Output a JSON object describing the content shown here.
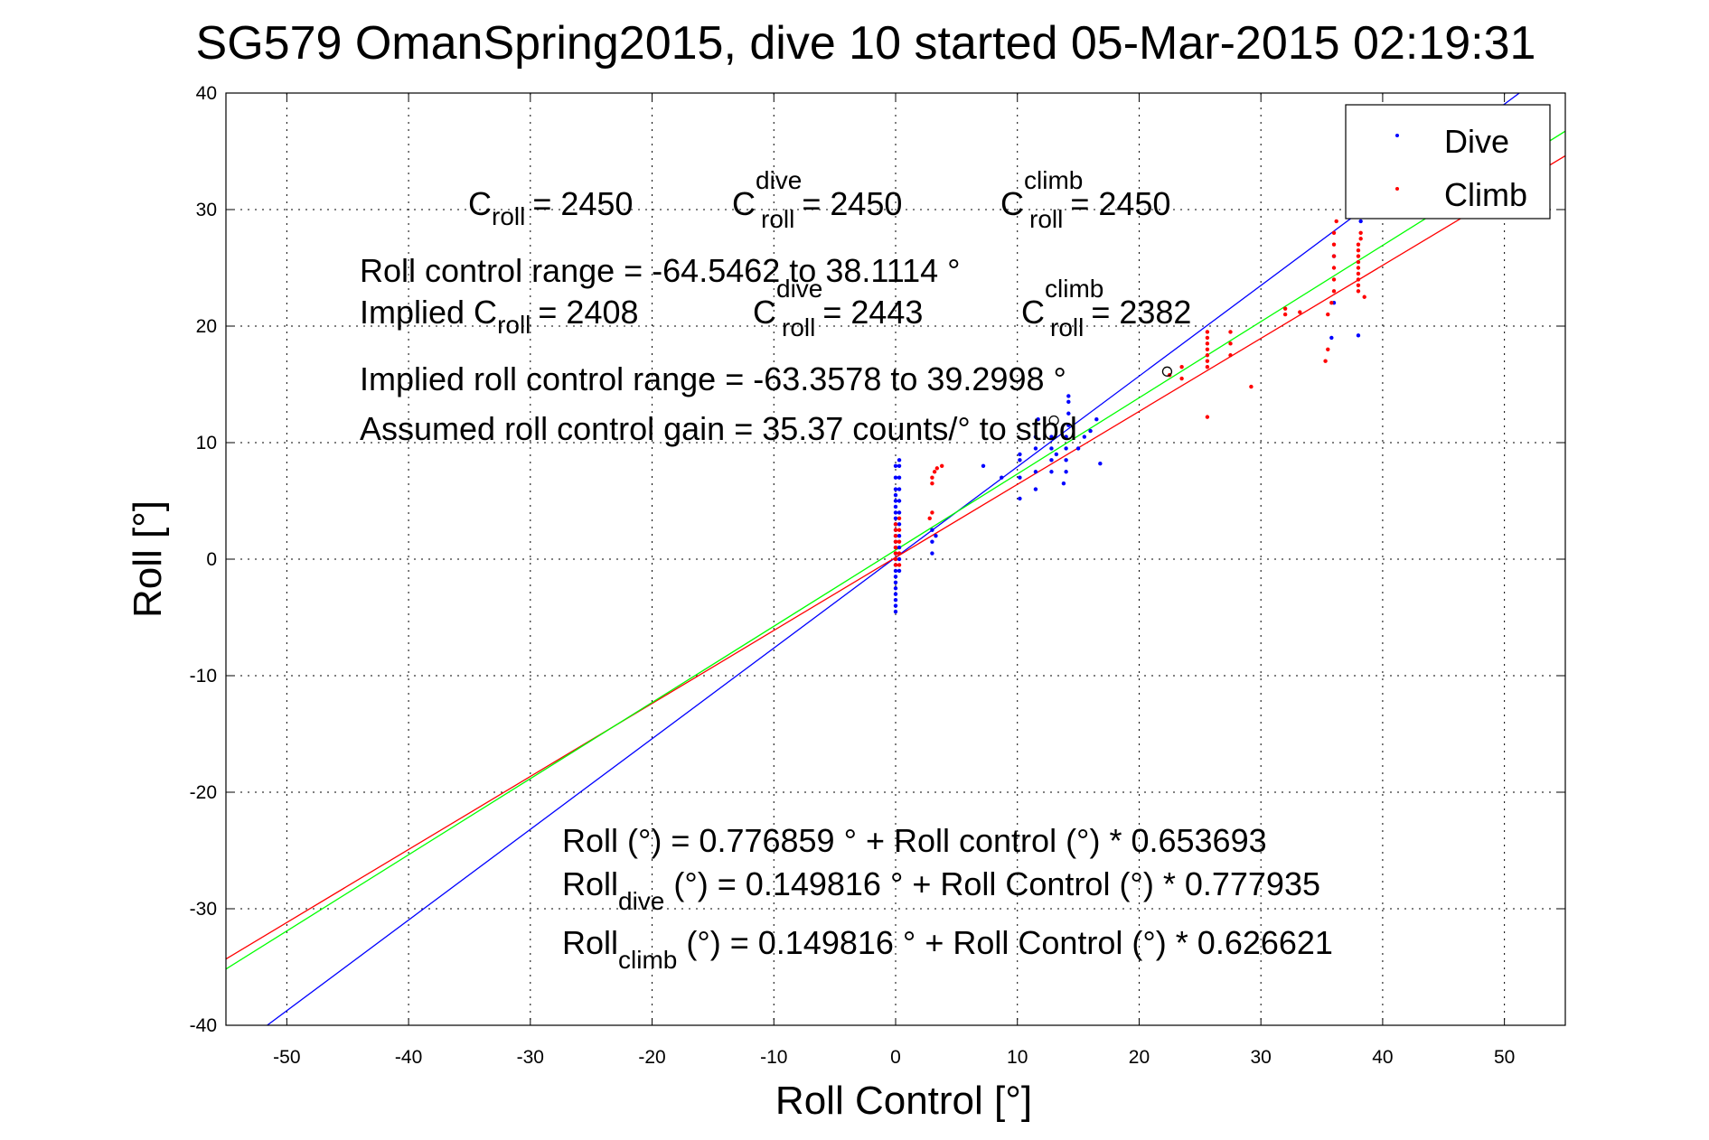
{
  "chart_data": {
    "type": "scatter",
    "title": "SG579 OmanSpring2015, dive 10 started 05-Mar-2015 02:19:31",
    "xlabel": "Roll Control [°]",
    "ylabel": "Roll [°]",
    "xlim": [
      -55,
      55
    ],
    "ylim": [
      -40,
      40
    ],
    "xticks": [
      -50,
      -40,
      -30,
      -20,
      -10,
      0,
      10,
      20,
      30,
      40,
      50
    ],
    "yticks": [
      -40,
      -30,
      -20,
      -10,
      0,
      10,
      20,
      30,
      40
    ],
    "grid": true,
    "legend_position": "top-right",
    "legend": [
      {
        "name": "Dive",
        "color": "#0000ff"
      },
      {
        "name": "Climb",
        "color": "#ff0000"
      }
    ],
    "series": [
      {
        "name": "Dive",
        "color": "#0000ff",
        "points": [
          [
            0,
            -4.5
          ],
          [
            0,
            -4
          ],
          [
            0,
            -3.5
          ],
          [
            0,
            -3
          ],
          [
            0,
            -2.5
          ],
          [
            0,
            -2
          ],
          [
            0,
            -1.5
          ],
          [
            0,
            -1
          ],
          [
            0,
            -0.5
          ],
          [
            0,
            0
          ],
          [
            0,
            0.5
          ],
          [
            0,
            1
          ],
          [
            0,
            1.5
          ],
          [
            0,
            2
          ],
          [
            0,
            2.5
          ],
          [
            0,
            3
          ],
          [
            0,
            3.5
          ],
          [
            0,
            4
          ],
          [
            0,
            4.5
          ],
          [
            0,
            5
          ],
          [
            0,
            5.5
          ],
          [
            0,
            6
          ],
          [
            0,
            7
          ],
          [
            0,
            8
          ],
          [
            0.3,
            -1
          ],
          [
            0.3,
            0
          ],
          [
            0.3,
            1
          ],
          [
            0.3,
            2
          ],
          [
            0.3,
            3
          ],
          [
            0.3,
            4
          ],
          [
            0.3,
            5
          ],
          [
            0.3,
            6
          ],
          [
            0.3,
            7
          ],
          [
            0.3,
            8
          ],
          [
            0.3,
            8.5
          ],
          [
            3,
            0.5
          ],
          [
            3,
            1.5
          ],
          [
            3,
            2.5
          ],
          [
            3.3,
            2
          ],
          [
            7.2,
            8
          ],
          [
            8.7,
            7
          ],
          [
            10.2,
            5.2
          ],
          [
            10.2,
            7
          ],
          [
            10.2,
            8.5
          ],
          [
            10.2,
            9
          ],
          [
            11.5,
            6
          ],
          [
            11.5,
            7.5
          ],
          [
            11.5,
            9.5
          ],
          [
            11.5,
            10.5
          ],
          [
            11.7,
            12
          ],
          [
            12.8,
            7.5
          ],
          [
            12.8,
            8.5
          ],
          [
            12.8,
            9.5
          ],
          [
            12.8,
            10.5
          ],
          [
            13.2,
            9
          ],
          [
            13.8,
            6.5
          ],
          [
            14,
            7.5
          ],
          [
            14,
            8.5
          ],
          [
            14,
            9.5
          ],
          [
            14,
            10.5
          ],
          [
            14.2,
            11.5
          ],
          [
            14.2,
            12.5
          ],
          [
            14.2,
            13.5
          ],
          [
            14.2,
            14
          ],
          [
            15,
            9.5
          ],
          [
            15.5,
            10.5
          ],
          [
            16,
            11
          ],
          [
            16.5,
            12
          ],
          [
            16.8,
            8.2
          ],
          [
            35.8,
            19
          ],
          [
            36,
            22
          ],
          [
            36,
            26
          ],
          [
            38,
            19.2
          ],
          [
            38.2,
            29
          ]
        ]
      },
      {
        "name": "Climb",
        "color": "#ff0000",
        "points": [
          [
            0,
            -0.5
          ],
          [
            0,
            0
          ],
          [
            0,
            0.5
          ],
          [
            0,
            1
          ],
          [
            0,
            1.5
          ],
          [
            0,
            2
          ],
          [
            0,
            2.5
          ],
          [
            0,
            3
          ],
          [
            0.3,
            -0.5
          ],
          [
            0.3,
            0.5
          ],
          [
            0.3,
            1.5
          ],
          [
            0.3,
            2.5
          ],
          [
            0.3,
            3.5
          ],
          [
            2.8,
            3.5
          ],
          [
            3,
            4
          ],
          [
            3,
            6.5
          ],
          [
            3,
            7
          ],
          [
            3.2,
            7.5
          ],
          [
            3.4,
            7.8
          ],
          [
            3.8,
            8
          ],
          [
            22.5,
            15.8
          ],
          [
            23.5,
            15.5
          ],
          [
            23.5,
            16.5
          ],
          [
            25.6,
            16.5
          ],
          [
            25.6,
            17
          ],
          [
            25.6,
            17.5
          ],
          [
            25.6,
            18
          ],
          [
            25.6,
            18.5
          ],
          [
            25.6,
            19
          ],
          [
            25.6,
            19.5
          ],
          [
            25.6,
            12.2
          ],
          [
            27.5,
            17.5
          ],
          [
            27.5,
            18.5
          ],
          [
            27.5,
            19.5
          ],
          [
            29.2,
            14.8
          ],
          [
            32,
            21
          ],
          [
            32,
            21.5
          ],
          [
            33.2,
            21.2
          ],
          [
            35.3,
            17
          ],
          [
            35.5,
            18
          ],
          [
            35.5,
            21
          ],
          [
            35.8,
            22
          ],
          [
            36,
            23
          ],
          [
            36,
            24
          ],
          [
            36,
            25
          ],
          [
            36,
            26
          ],
          [
            36,
            27
          ],
          [
            36,
            28
          ],
          [
            36.2,
            29
          ],
          [
            38,
            23
          ],
          [
            38,
            23.5
          ],
          [
            38,
            24
          ],
          [
            38,
            24.5
          ],
          [
            38,
            25
          ],
          [
            38,
            25.5
          ],
          [
            38,
            26
          ],
          [
            38,
            26.5
          ],
          [
            38,
            27
          ],
          [
            38.2,
            27.5
          ],
          [
            38.2,
            28
          ],
          [
            38.5,
            22.5
          ]
        ]
      }
    ],
    "fit_lines": [
      {
        "color": "#0000ff",
        "x": [
          -52,
          52
        ],
        "y": [
          -40.303,
          40.603
        ]
      },
      {
        "color": "#ff0000",
        "x": [
          -55,
          55
        ],
        "y": [
          -34.313,
          34.613
        ]
      },
      {
        "color": "#00ff00",
        "x": [
          -55,
          55
        ],
        "y": [
          -35.176,
          36.73
        ]
      }
    ],
    "markers": [
      {
        "x": 22.3,
        "y": 16.1
      },
      {
        "x": 13,
        "y": 11.9
      }
    ]
  },
  "annotations": {
    "c_roll": {
      "base": "C",
      "sub": "roll",
      "value": "= 2450"
    },
    "c_roll_dive": {
      "base": "C",
      "sup": "dive",
      "sub": "roll",
      "value": "= 2450"
    },
    "c_roll_climb": {
      "base": "C",
      "sup": "climb",
      "sub": "roll",
      "value": "= 2450"
    },
    "range": "Roll control range = -64.5462 to 38.1114 °",
    "implied_c_roll": {
      "base": "Implied C",
      "sub": "roll",
      "value": "= 2408"
    },
    "implied_c_dive": {
      "base": "C",
      "sup": "dive",
      "sub": "roll",
      "value": "= 2443"
    },
    "implied_c_climb": {
      "base": "C",
      "sup": "climb",
      "sub": "roll",
      "value": "= 2382"
    },
    "implied_range": "Implied roll control range = -63.3578 to 39.2998 °",
    "gain": "Assumed roll control gain = 35.37 counts/° to stbd",
    "eq1": "Roll (°) = 0.776859 ° + Roll control (°) * 0.653693",
    "eq2": {
      "base": "Roll",
      "sub": "dive",
      "rest": " (°) = 0.149816 ° + Roll Control (°) * 0.777935"
    },
    "eq3": {
      "base": "Roll",
      "sub": "climb",
      "rest": " (°) = 0.149816 ° + Roll Control (°) * 0.626621"
    }
  }
}
